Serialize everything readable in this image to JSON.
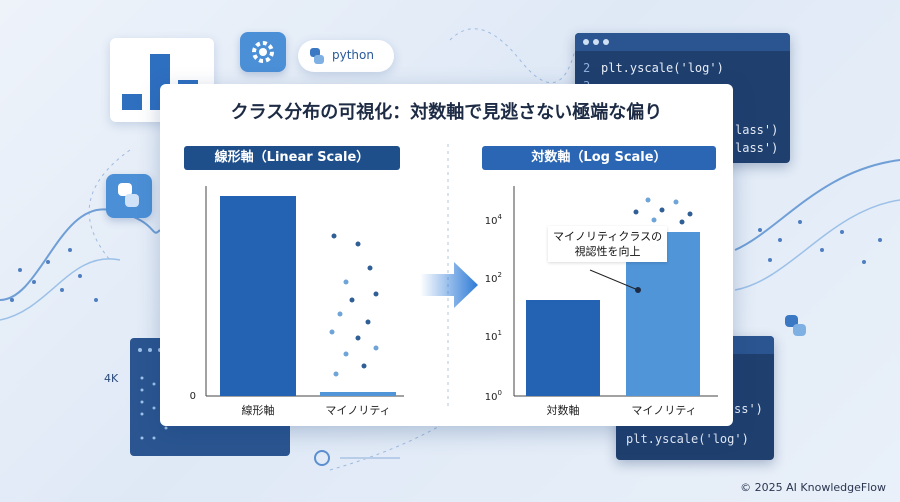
{
  "title": "クラス分布の可視化：対数軸で見逃さない極端な偏り",
  "left_panel": {
    "header": "線形軸（Linear Scale）",
    "y_tick": "0",
    "categories": [
      "線形軸",
      "マイノリティ"
    ]
  },
  "right_panel": {
    "header": "対数軸（Log Scale）",
    "y_ticks": [
      "10",
      "10",
      "10",
      "10"
    ],
    "y_tick_exponents": [
      "4",
      "2",
      "1",
      "0"
    ],
    "categories": [
      "対数軸",
      "マイノリティ"
    ],
    "annotation_line1": "マイノリティクラスの",
    "annotation_line2": "視認性を向上"
  },
  "decor": {
    "python_badge": "python",
    "code_top_line1": "plt.yscale('log')",
    "code_top_line2": "lass')",
    "code_top_line3": "lass')",
    "code_bottom_line1": "ss')",
    "code_bottom_line2": "plt.yscale('log')",
    "line_numbers_top": [
      "2",
      "3"
    ],
    "side_label": "4K"
  },
  "footer": "© 2025 AI KnowledgeFlow",
  "colors": {
    "header_bg": "#1f4f8a",
    "bar_dark": "#2463b4",
    "bar_light": "#4f95d8",
    "dot_dark": "#2f5f95",
    "dot_light": "#6ea4d8",
    "arrow": "#2e7bd6"
  },
  "chart_data": [
    {
      "type": "bar",
      "title": "線形軸（Linear Scale）",
      "scale": "linear",
      "categories": [
        "線形軸",
        "マイノリティ"
      ],
      "values": [
        100,
        1
      ],
      "ytick_labels": [
        "0"
      ]
    },
    {
      "type": "bar",
      "title": "対数軸（Log Scale）",
      "scale": "log",
      "categories": [
        "対数軸",
        "マイノリティ"
      ],
      "values": [
        40,
        6000
      ],
      "ylim": [
        1,
        10000
      ],
      "ytick_labels": [
        "10^0",
        "10^1",
        "10^2",
        "10^4"
      ]
    }
  ]
}
